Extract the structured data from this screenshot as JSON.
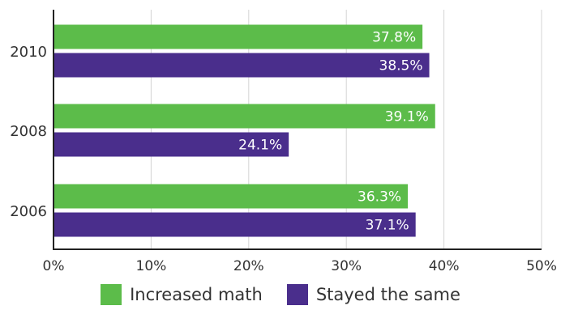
{
  "chart_data": {
    "type": "bar",
    "orientation": "horizontal",
    "categories": [
      "2010",
      "2008",
      "2006"
    ],
    "series": [
      {
        "name": "Increased math",
        "values": [
          37.8,
          39.1,
          36.3
        ],
        "labels": [
          "37.8%",
          "39.1%",
          "36.3%"
        ],
        "color": "#5cbc4a"
      },
      {
        "name": "Stayed the same",
        "values": [
          38.5,
          24.1,
          37.1
        ],
        "labels": [
          "38.5%",
          "24.1%",
          "37.1%"
        ],
        "color": "#4a2e8c"
      }
    ],
    "xlim": [
      0,
      50
    ],
    "xticks": [
      0,
      10,
      20,
      30,
      40,
      50
    ],
    "xtick_labels": [
      "0%",
      "10%",
      "20%",
      "30%",
      "40%",
      "50%"
    ],
    "title": "",
    "xlabel": "",
    "ylabel": "",
    "grid": true,
    "legend_position": "bottom"
  }
}
